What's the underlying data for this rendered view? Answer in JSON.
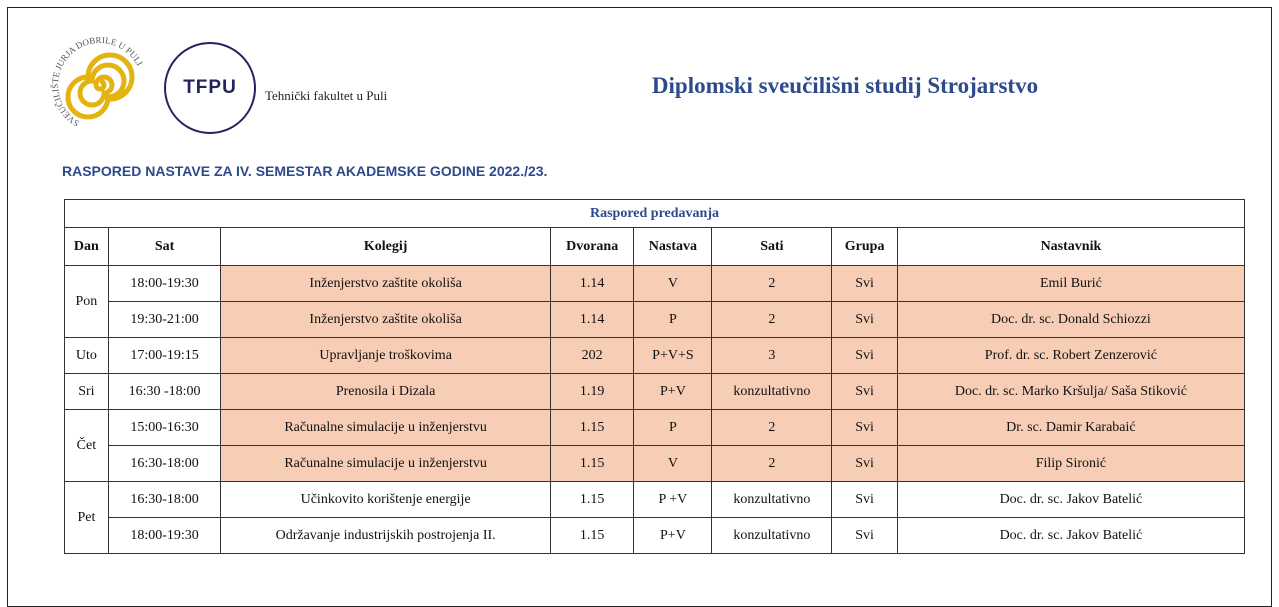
{
  "header": {
    "seal_text": "SVEUČILIŠTE JURJA DOBRILE U PULI",
    "logo_text": "TFPU",
    "faculty": "Tehnički fakultet u Puli",
    "title": "Diplomski sveučilišni studij Strojarstvo",
    "subtitle": "RASPORED NASTAVE ZA IV. SEMESTAR AKADEMSKE GODINE 2022./23."
  },
  "table": {
    "caption": "Raspored predavanja",
    "columns": [
      "Dan",
      "Sat",
      "Kolegij",
      "Dvorana",
      "Nastava",
      "Sati",
      "Grupa",
      "Nastavnik"
    ],
    "days": [
      {
        "day": "Pon",
        "sessions": [
          {
            "sat": "18:00-19:30",
            "kolegij": "Inženjerstvo zaštite okoliša",
            "dvorana": "1.14",
            "nastava": "V",
            "sati": "2",
            "grupa": "Svi",
            "nastavnik": "Emil Burić",
            "fill": "#f8cdb5"
          },
          {
            "sat": "19:30-21:00",
            "kolegij": "Inženjerstvo zaštite okoliša",
            "dvorana": "1.14",
            "nastava": "P",
            "sati": "2",
            "grupa": "Svi",
            "nastavnik": "Doc. dr. sc. Donald Schiozzi",
            "fill": "#f8cdb5"
          }
        ]
      },
      {
        "day": "Uto",
        "sessions": [
          {
            "sat": "17:00-19:15",
            "kolegij": "Upravljanje troškovima",
            "dvorana": "202",
            "nastava": "P+V+S",
            "sati": "3",
            "grupa": "Svi",
            "nastavnik": "Prof. dr. sc. Robert Zenzerović",
            "fill": "#f8cdb5"
          }
        ]
      },
      {
        "day": "Sri",
        "sessions": [
          {
            "sat": "16:30 -18:00",
            "kolegij": "Prenosila i Dizala",
            "dvorana": "1.19",
            "nastava": "P+V",
            "sati": "konzultativno",
            "grupa": "Svi",
            "nastavnik": "Doc. dr. sc. Marko Kršulja/ Saša Stiković",
            "fill": "#f8cdb5"
          }
        ]
      },
      {
        "day": "Čet",
        "sessions": [
          {
            "sat": "15:00-16:30",
            "kolegij": "Računalne simulacije u inženjerstvu",
            "dvorana": "1.15",
            "nastava": "P",
            "sati": "2",
            "grupa": "Svi",
            "nastavnik": "Dr. sc. Damir Karabaić",
            "fill": "#f8cdb5"
          },
          {
            "sat": "16:30-18:00",
            "kolegij": "Računalne simulacije u inženjerstvu",
            "dvorana": "1.15",
            "nastava": "V",
            "sati": "2",
            "grupa": "Svi",
            "nastavnik": "Filip Sironić",
            "fill": "#f8cdb5"
          }
        ]
      },
      {
        "day": "Pet",
        "sessions": [
          {
            "sat": "16:30-18:00",
            "kolegij": "Učinkovito korištenje energije",
            "dvorana": "1.15",
            "nastava": "P +V",
            "sati": "konzultativno",
            "grupa": "Svi",
            "nastavnik": "Doc. dr. sc. Jakov Batelić"
          },
          {
            "sat": "18:00-19:30",
            "kolegij": "Održavanje industrijskih postrojenja II.",
            "dvorana": "1.15",
            "nastava": "P+V",
            "sati": "konzultativno",
            "grupa": "Svi",
            "nastavnik": "Doc. dr. sc. Jakov Batelić"
          }
        ]
      }
    ]
  }
}
